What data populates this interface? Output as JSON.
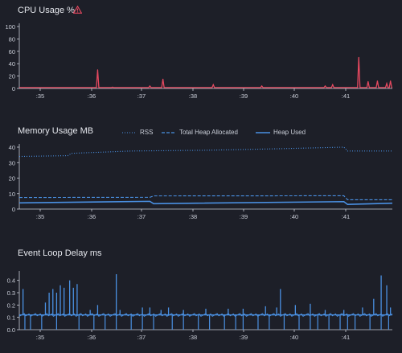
{
  "chart_data": [
    {
      "type": "line",
      "title": "CPU Usage %",
      "ylim": [
        0,
        100
      ],
      "yticks": [
        0,
        20,
        40,
        60,
        80,
        100
      ],
      "xtick_labels": [
        ":35",
        ":36",
        ":37",
        ":38",
        ":39",
        ":40",
        ":41"
      ],
      "color": "#e5485f",
      "baseline": 1.5,
      "spikes": [
        {
          "x": 0.21,
          "y": 30
        },
        {
          "x": 0.25,
          "y": 2
        },
        {
          "x": 0.35,
          "y": 4
        },
        {
          "x": 0.385,
          "y": 15
        },
        {
          "x": 0.52,
          "y": 6
        },
        {
          "x": 0.65,
          "y": 4
        },
        {
          "x": 0.82,
          "y": 4
        },
        {
          "x": 0.84,
          "y": 6
        },
        {
          "x": 0.91,
          "y": 50
        },
        {
          "x": 0.935,
          "y": 11
        },
        {
          "x": 0.96,
          "y": 12
        },
        {
          "x": 0.985,
          "y": 8
        },
        {
          "x": 0.995,
          "y": 12
        }
      ]
    },
    {
      "type": "line",
      "title": "Memory Usage MB",
      "ylim": [
        0,
        40
      ],
      "yticks": [
        0,
        10,
        20,
        30,
        40
      ],
      "xtick_labels": [
        ":35",
        ":36",
        ":37",
        ":38",
        ":39",
        ":40",
        ":41"
      ],
      "color": "#4a90e2",
      "series": [
        {
          "name": "RSS",
          "style": "dotted",
          "points": [
            [
              0,
              34
            ],
            [
              0.13,
              34.5
            ],
            [
              0.14,
              36
            ],
            [
              0.3,
              37.5
            ],
            [
              0.5,
              38
            ],
            [
              0.7,
              39
            ],
            [
              0.87,
              40
            ],
            [
              0.88,
              37.5
            ],
            [
              1,
              37.5
            ]
          ]
        },
        {
          "name": "Total Heap Allocated",
          "style": "dashed",
          "points": [
            [
              0,
              7.5
            ],
            [
              0.35,
              7.6
            ],
            [
              0.36,
              8.5
            ],
            [
              0.87,
              8.6
            ],
            [
              0.88,
              6
            ],
            [
              1,
              6
            ]
          ]
        },
        {
          "name": "Heap Used",
          "style": "solid",
          "points": [
            [
              0,
              4
            ],
            [
              0.35,
              5
            ],
            [
              0.36,
              3.5
            ],
            [
              0.87,
              4.8
            ],
            [
              0.88,
              3
            ],
            [
              1,
              3.8
            ]
          ]
        }
      ]
    },
    {
      "type": "line",
      "title": "Event Loop Delay ms",
      "ylim": [
        0,
        0.45
      ],
      "yticks": [
        0,
        0.1,
        0.2,
        0.3,
        0.4
      ],
      "ytick_labels": [
        "0.0",
        "0.1",
        "0.2",
        "0.3",
        "0.4"
      ],
      "xtick_labels": [
        ":35",
        ":36",
        ":37",
        ":38",
        ":39",
        ":40",
        ":41"
      ],
      "color": "#4a90e2",
      "baseline": 0.12,
      "spikes_up": [
        {
          "x": 0.01,
          "y": 0.33
        },
        {
          "x": 0.07,
          "y": 0.22
        },
        {
          "x": 0.08,
          "y": 0.3
        },
        {
          "x": 0.09,
          "y": 0.33
        },
        {
          "x": 0.1,
          "y": 0.3
        },
        {
          "x": 0.11,
          "y": 0.36
        },
        {
          "x": 0.12,
          "y": 0.34
        },
        {
          "x": 0.135,
          "y": 0.4
        },
        {
          "x": 0.145,
          "y": 0.34
        },
        {
          "x": 0.155,
          "y": 0.37
        },
        {
          "x": 0.19,
          "y": 0.16
        },
        {
          "x": 0.21,
          "y": 0.2
        },
        {
          "x": 0.27,
          "y": 0.16
        },
        {
          "x": 0.33,
          "y": 0.18
        },
        {
          "x": 0.35,
          "y": 0.18
        },
        {
          "x": 0.38,
          "y": 0.16
        },
        {
          "x": 0.4,
          "y": 0.18
        },
        {
          "x": 0.44,
          "y": 0.16
        },
        {
          "x": 0.5,
          "y": 0.17
        },
        {
          "x": 0.56,
          "y": 0.17
        },
        {
          "x": 0.6,
          "y": 0.17
        },
        {
          "x": 0.66,
          "y": 0.19
        },
        {
          "x": 0.69,
          "y": 0.18
        },
        {
          "x": 0.7,
          "y": 0.33
        },
        {
          "x": 0.74,
          "y": 0.2
        },
        {
          "x": 0.78,
          "y": 0.21
        },
        {
          "x": 0.82,
          "y": 0.16
        },
        {
          "x": 0.87,
          "y": 0.16
        },
        {
          "x": 0.92,
          "y": 0.18
        },
        {
          "x": 0.95,
          "y": 0.25
        },
        {
          "x": 0.97,
          "y": 0.44
        },
        {
          "x": 0.985,
          "y": 0.36
        },
        {
          "x": 0.995,
          "y": 0.18
        }
      ],
      "spikes_up_tall": [
        {
          "x": 0.26,
          "y": 0.46
        }
      ],
      "dips": [
        0.015,
        0.03,
        0.06,
        0.1,
        0.16,
        0.2,
        0.23,
        0.26,
        0.3,
        0.33,
        0.36,
        0.41,
        0.44,
        0.48,
        0.51,
        0.55,
        0.58,
        0.6,
        0.64,
        0.67,
        0.71,
        0.75,
        0.78,
        0.8,
        0.83,
        0.86,
        0.88,
        0.9,
        0.94,
        0.97,
        0.99
      ]
    }
  ],
  "legend": [
    {
      "name": "RSS",
      "style": "dotted"
    },
    {
      "name": "Total Heap Allocated",
      "style": "dashed"
    },
    {
      "name": "Heap Used",
      "style": "solid"
    }
  ],
  "warning_icon": "warning-triangle-icon",
  "colors": {
    "background": "#1d1f28",
    "axis": "#c8ccd6",
    "grid": "#3a3d48",
    "cpu": "#e5485f",
    "memory": "#4a90e2",
    "event": "#4a90e2"
  }
}
